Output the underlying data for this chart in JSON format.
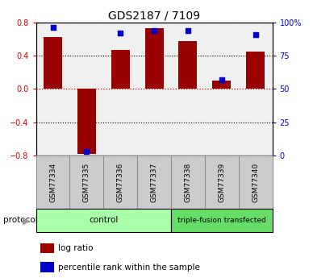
{
  "title": "GDS2187 / 7109",
  "samples": [
    "GSM77334",
    "GSM77335",
    "GSM77336",
    "GSM77337",
    "GSM77338",
    "GSM77339",
    "GSM77340"
  ],
  "log_ratio": [
    0.62,
    -0.78,
    0.47,
    0.73,
    0.57,
    0.1,
    0.45
  ],
  "percentile_rank": [
    96,
    3,
    92,
    94,
    94,
    57,
    91
  ],
  "ylim_left": [
    -0.8,
    0.8
  ],
  "ylim_right": [
    0,
    100
  ],
  "yticks_left": [
    -0.8,
    -0.4,
    0.0,
    0.4,
    0.8
  ],
  "yticks_right": [
    0,
    25,
    50,
    75,
    100
  ],
  "ytick_labels_right": [
    "0",
    "25",
    "50",
    "75",
    "100%"
  ],
  "bar_color": "#990000",
  "dot_color": "#0000cc",
  "bar_width": 0.55,
  "protocol_groups": [
    {
      "label": "control",
      "indices": [
        0,
        1,
        2,
        3
      ],
      "color": "#aaffaa"
    },
    {
      "label": "triple-fusion transfected",
      "indices": [
        4,
        5,
        6
      ],
      "color": "#66dd66"
    }
  ],
  "protocol_label": "protocol",
  "legend_items": [
    {
      "color": "#990000",
      "label": "log ratio"
    },
    {
      "color": "#0000cc",
      "label": "percentile rank within the sample"
    }
  ],
  "background_color": "#ffffff",
  "plot_bg_color": "#f0f0f0",
  "grid_color": "#000000",
  "zero_line_color": "#cc0000",
  "tick_label_color_left": "#cc0000",
  "tick_label_color_right": "#0000cc",
  "title_fontsize": 10,
  "tick_fontsize": 7,
  "label_fontsize": 6.5,
  "legend_fontsize": 7.5,
  "proto_fontsize": 7.5,
  "sample_box_color": "#cccccc",
  "sample_box_edge": "#888888"
}
